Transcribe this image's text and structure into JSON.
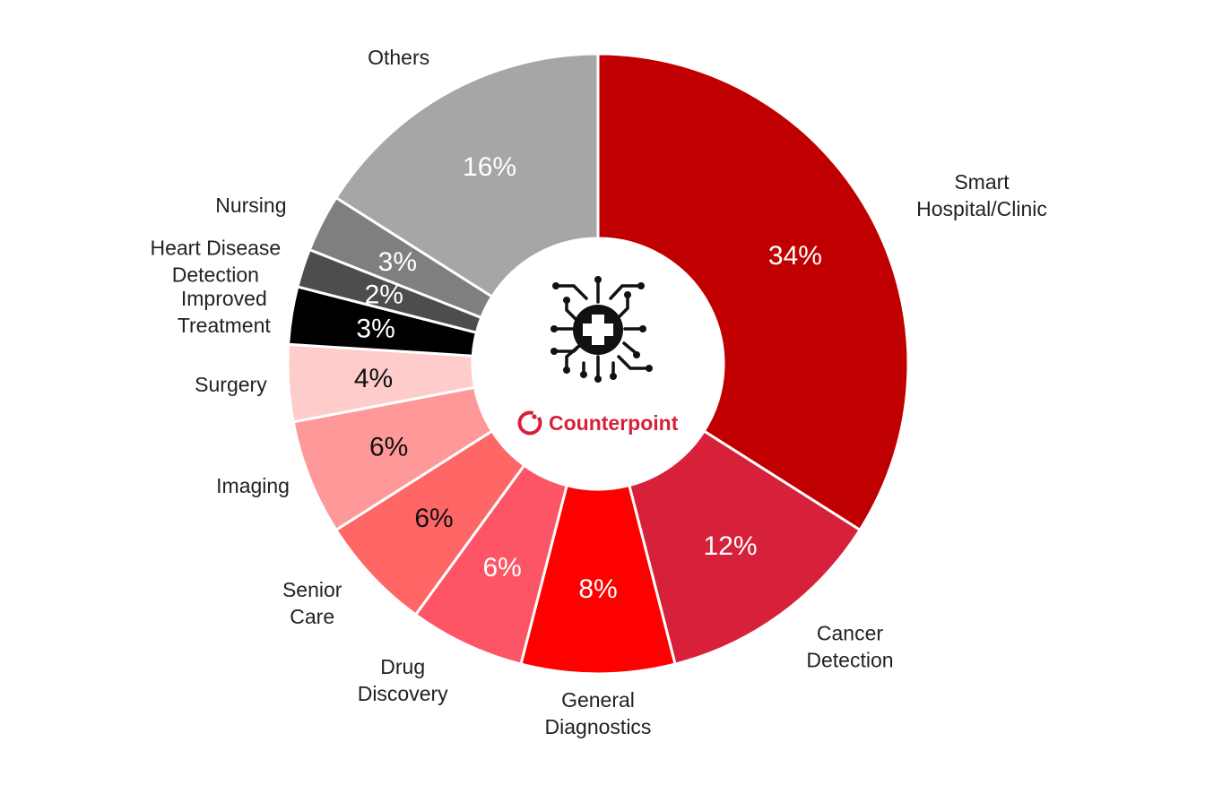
{
  "chart_data": {
    "type": "pie",
    "donut": true,
    "title": "",
    "unit": "%",
    "slices": [
      {
        "label": "Smart Hospital/Clinic",
        "lines": [
          "Smart",
          "Hospital/Clinic"
        ],
        "value": 34,
        "value_label": "34%",
        "color": "#c00000",
        "text_color": "#ffffff"
      },
      {
        "label": "Cancer Detection",
        "lines": [
          "Cancer",
          "Detection"
        ],
        "value": 12,
        "value_label": "12%",
        "color": "#d7213b",
        "text_color": "#ffffff"
      },
      {
        "label": "General Diagnostics",
        "lines": [
          "General",
          "Diagnostics"
        ],
        "value": 8,
        "value_label": "8%",
        "color": "#ff0000",
        "text_color": "#ffffff"
      },
      {
        "label": "Drug Discovery",
        "lines": [
          "Drug",
          "Discovery"
        ],
        "value": 6,
        "value_label": "6%",
        "color": "#fe5566",
        "text_color": "#ffffff"
      },
      {
        "label": "Senior Care",
        "lines": [
          "Senior",
          "Care"
        ],
        "value": 6,
        "value_label": "6%",
        "color": "#ff6666",
        "text_color": "#111111"
      },
      {
        "label": "Imaging",
        "lines": [
          "Imaging"
        ],
        "value": 6,
        "value_label": "6%",
        "color": "#ff9999",
        "text_color": "#111111"
      },
      {
        "label": "Surgery",
        "lines": [
          "Surgery"
        ],
        "value": 4,
        "value_label": "4%",
        "color": "#ffcccc",
        "text_color": "#111111"
      },
      {
        "label": "Improved Treatment",
        "lines": [
          "Improved",
          "Treatment"
        ],
        "value": 3,
        "value_label": "3%",
        "color": "#000000",
        "text_color": "#ffffff"
      },
      {
        "label": "Heart Disease Detection",
        "lines": [
          "Heart Disease",
          "Detection"
        ],
        "value": 2,
        "value_label": "2%",
        "color": "#4d4d4d",
        "text_color": "#ffffff"
      },
      {
        "label": "Nursing",
        "lines": [
          "Nursing"
        ],
        "value": 3,
        "value_label": "3%",
        "color": "#7f7f7f",
        "text_color": "#ffffff"
      },
      {
        "label": "Others",
        "lines": [
          "Others"
        ],
        "value": 16,
        "value_label": "16%",
        "color": "#a6a6a6",
        "text_color": "#ffffff"
      }
    ]
  },
  "center": {
    "icon": "medical-chip-icon",
    "logo_icon": "counterpoint-logo-icon",
    "brand": "Counterpoint",
    "brand_color": "#d7213b"
  }
}
